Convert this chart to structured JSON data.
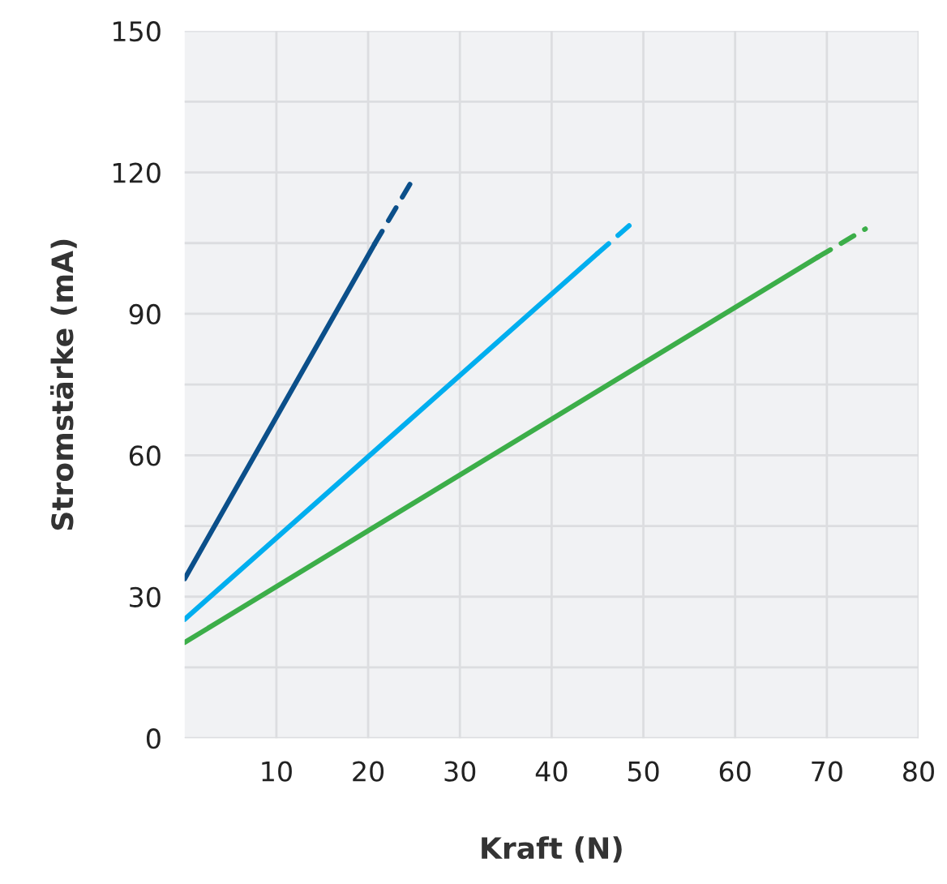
{
  "chart_data": {
    "type": "line",
    "xlabel": "Kraft (N)",
    "ylabel": "Stromstärke (mA)",
    "xlim": [
      0,
      80
    ],
    "xticks": [
      10,
      20,
      30,
      40,
      50,
      60,
      70,
      80
    ],
    "ylim": [
      0,
      150
    ],
    "yticks": [
      0,
      {
        "value": 15,
        "label": null
      },
      30,
      {
        "value": 45,
        "label": null
      },
      60,
      {
        "value": 75,
        "label": null
      },
      90,
      {
        "value": 105,
        "label": null
      },
      120,
      {
        "value": 135,
        "label": null
      },
      150
    ],
    "grid": true,
    "marker": "none",
    "series": [
      {
        "color": "#0b4f8a",
        "line_style": "solid",
        "x": [
          0,
          20.7
        ],
        "values": [
          33.8,
          104.8
        ]
      },
      {
        "color": "#0b4f8a",
        "line_style": "dashed",
        "x": [
          20.7,
          24.8
        ],
        "values": [
          104.8,
          118.3
        ]
      },
      {
        "color": "#00aeef",
        "line_style": "solid",
        "x": [
          0,
          45
        ],
        "values": [
          25.2,
          102.8
        ]
      },
      {
        "color": "#00aeef",
        "line_style": "dashed",
        "x": [
          45,
          49.2
        ],
        "values": [
          102.8,
          110
        ]
      },
      {
        "color": "#3cae49",
        "line_style": "solid",
        "x": [
          0,
          69
        ],
        "values": [
          20.3,
          102
        ]
      },
      {
        "color": "#3cae49",
        "line_style": "dashed",
        "x": [
          69,
          74.2
        ],
        "values": [
          102,
          108
        ]
      }
    ]
  }
}
